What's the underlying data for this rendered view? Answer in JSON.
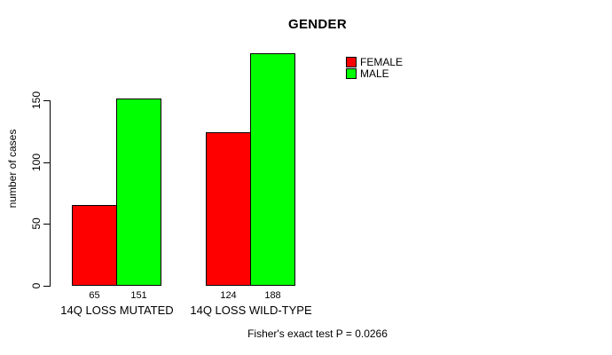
{
  "chart_data": {
    "type": "bar",
    "title": "GENDER",
    "ylabel": "number of cases",
    "xlabel": "",
    "categories": [
      "14Q LOSS MUTATED",
      "14Q LOSS WILD-TYPE"
    ],
    "series": [
      {
        "name": "FEMALE",
        "color": "#ff0000",
        "values": [
          65,
          124
        ]
      },
      {
        "name": "MALE",
        "color": "#00ff00",
        "values": [
          151,
          188
        ]
      }
    ],
    "yticks": [
      0,
      50,
      100,
      150
    ],
    "ylim": [
      0,
      190
    ],
    "grid": false,
    "bar_value_labels": [
      [
        "65",
        "151"
      ],
      [
        "124",
        "188"
      ]
    ],
    "legend_position": "top-right-inside",
    "annotation": "Fisher's exact test P = 0.0266"
  }
}
